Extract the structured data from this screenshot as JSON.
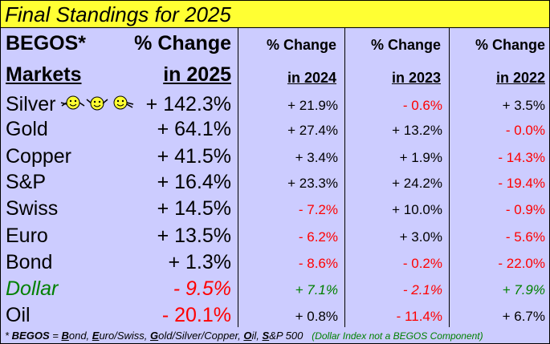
{
  "title": "Final Standings for 2025",
  "headers": {
    "begos": "BEGOS*",
    "markets": "Markets",
    "pct_change": "% Change",
    "y2025": "in 2025",
    "y2024": "in 2024",
    "y2023": "in 2023",
    "y2022": "in 2022"
  },
  "rows": [
    {
      "name": "Silver",
      "v2025": "+ 142.3%",
      "v2024": "+ 21.9%",
      "v2023": "- 0.6%",
      "v2022": "+ 3.5%"
    },
    {
      "name": "Gold",
      "v2025": "+ 64.1%",
      "v2024": "+ 27.4%",
      "v2023": "+ 13.2%",
      "v2022": "- 0.0%"
    },
    {
      "name": "Copper",
      "v2025": "+ 41.5%",
      "v2024": "+ 3.4%",
      "v2023": "+ 1.9%",
      "v2022": "- 14.3%"
    },
    {
      "name": "S&P",
      "v2025": "+ 16.4%",
      "v2024": "+ 23.3%",
      "v2023": "+ 24.2%",
      "v2022": "- 19.4%"
    },
    {
      "name": "Swiss",
      "v2025": "+ 14.5%",
      "v2024": "- 7.2%",
      "v2023": "+ 10.0%",
      "v2022": "- 0.9%"
    },
    {
      "name": "Euro",
      "v2025": "+ 13.5%",
      "v2024": "- 6.2%",
      "v2023": "+ 3.0%",
      "v2022": "- 5.6%"
    },
    {
      "name": "Bond",
      "v2025": "+ 1.3%",
      "v2024": "- 8.6%",
      "v2023": "- 0.2%",
      "v2022": "- 22.0%"
    },
    {
      "name": "Dollar",
      "v2025": "- 9.5%",
      "v2024": "+ 7.1%",
      "v2023": "- 2.1%",
      "v2022": "+ 7.9%"
    },
    {
      "name": "Oil",
      "v2025": "- 20.1%",
      "v2024": "+ 0.8%",
      "v2023": "- 11.4%",
      "v2022": "+ 6.7%"
    }
  ],
  "footer": {
    "star": "* ",
    "begos": "BEGOS",
    "eq": " = ",
    "b": "B",
    "b_rest": "ond, ",
    "e": "E",
    "e_rest": "uro/Swiss, ",
    "g": "G",
    "g_rest": "old/Silver/Copper, ",
    "o": "O",
    "o_rest": "il, ",
    "s": "S",
    "s_rest": "&P 500",
    "note": "(Dollar Index not a BEGOS Component)"
  },
  "colors": {
    "title_bg": "#ffff33",
    "bg": "#ccccff",
    "negative": "#ff0000",
    "dollar": "#008000"
  },
  "icons": [
    "smiley-face-icon",
    "smiley-face-icon",
    "smiley-face-icon"
  ]
}
